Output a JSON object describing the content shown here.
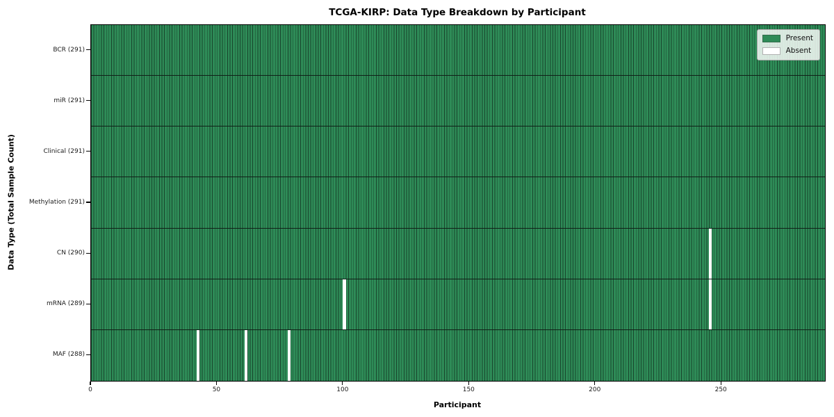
{
  "chart_data": {
    "type": "heatmap",
    "title": "TCGA-KIRP: Data Type Breakdown by Participant",
    "xlabel": "Participant",
    "ylabel": "Data Type (Total Sample Count)",
    "n_participants": 291,
    "x_ticks": [
      0,
      50,
      100,
      150,
      200,
      250
    ],
    "x_range": [
      0,
      291
    ],
    "grid": false,
    "rows": [
      {
        "data_type": "BCR",
        "label": "BCR (291)",
        "total_samples": 291,
        "absent_participants": []
      },
      {
        "data_type": "miR",
        "label": "miR (291)",
        "total_samples": 291,
        "absent_participants": []
      },
      {
        "data_type": "Clinical",
        "label": "Clinical (291)",
        "total_samples": 291,
        "absent_participants": []
      },
      {
        "data_type": "Methylation",
        "label": "Methylation (291)",
        "total_samples": 291,
        "absent_participants": []
      },
      {
        "data_type": "CN",
        "label": "CN (290)",
        "total_samples": 290,
        "absent_participants": [
          245
        ]
      },
      {
        "data_type": "mRNA",
        "label": "mRNA (289)",
        "total_samples": 289,
        "absent_participants": [
          100,
          245
        ]
      },
      {
        "data_type": "MAF",
        "label": "MAF (288)",
        "total_samples": 288,
        "absent_participants": [
          42,
          61,
          78
        ]
      }
    ],
    "legend": {
      "position": "upper right",
      "entries": [
        {
          "label": "Present",
          "color": "#2e8b57"
        },
        {
          "label": "Absent",
          "color": "#ffffff"
        }
      ]
    },
    "colors": {
      "present": "#2e8b57",
      "absent": "#ffffff",
      "bar_edge": "#16301f",
      "row_separator": "#101f17",
      "axis": "#000000"
    }
  }
}
